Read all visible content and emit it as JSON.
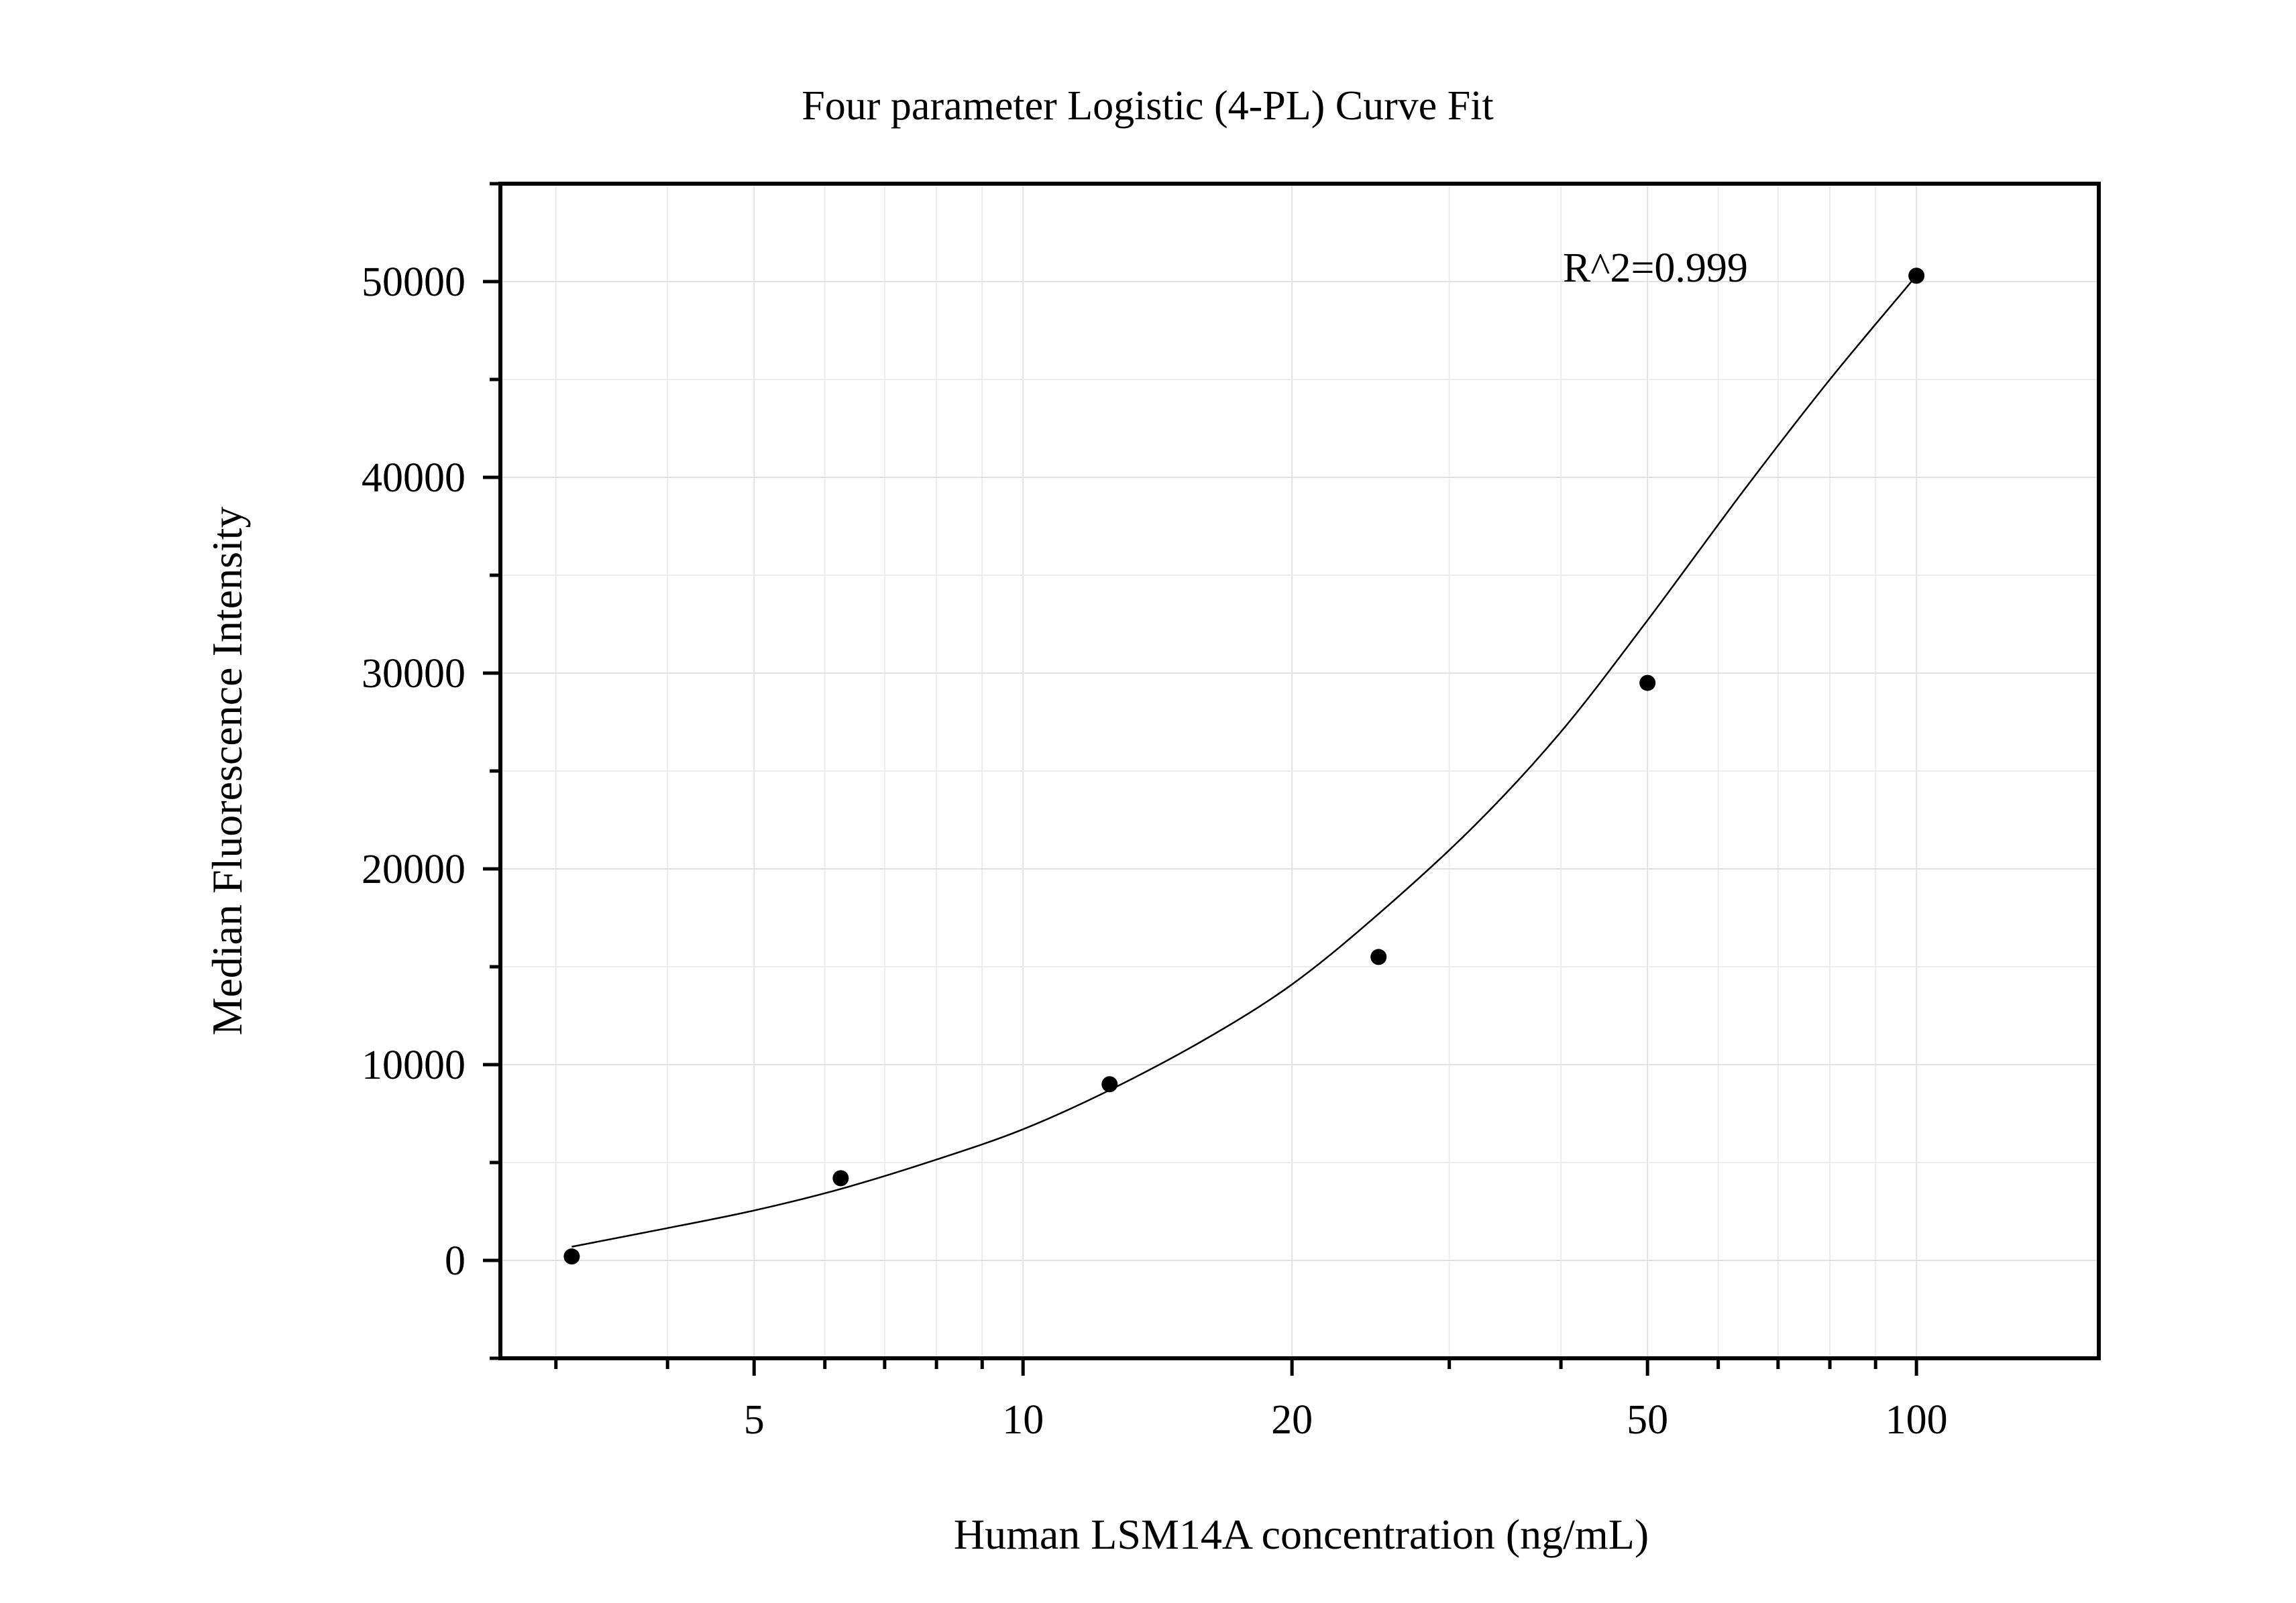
{
  "chart_data": {
    "type": "scatter",
    "title": "Four parameter Logistic (4-PL) Curve Fit",
    "xlabel": "Human LSM14A concentration (ng/mL)",
    "ylabel": "Median Fluorescence Intensity",
    "x_scale": "log",
    "xlim": [
      2.6,
      160
    ],
    "ylim": [
      -5000,
      55000
    ],
    "x_ticks": [
      5,
      10,
      20,
      50,
      100
    ],
    "x_tick_labels": [
      "5",
      "10",
      "20",
      "50",
      "100"
    ],
    "y_ticks": [
      0,
      10000,
      20000,
      30000,
      40000,
      50000
    ],
    "y_tick_labels": [
      "0",
      "10000",
      "20000",
      "30000",
      "40000",
      "50000"
    ],
    "grid": true,
    "annotation": "R^2=0.999",
    "points": {
      "x": [
        3.125,
        6.25,
        12.5,
        25,
        50,
        100
      ],
      "y": [
        200,
        4200,
        9000,
        15500,
        29500,
        50300
      ]
    },
    "fit_curve": {
      "x": [
        3.125,
        4,
        5,
        6.25,
        8,
        10,
        12.5,
        16,
        20,
        25,
        32,
        40,
        50,
        64,
        80,
        100
      ],
      "y": [
        700,
        1650,
        2550,
        3650,
        5150,
        6700,
        8700,
        11300,
        14100,
        17700,
        22200,
        27000,
        32700,
        39300,
        45000,
        50300
      ]
    }
  }
}
